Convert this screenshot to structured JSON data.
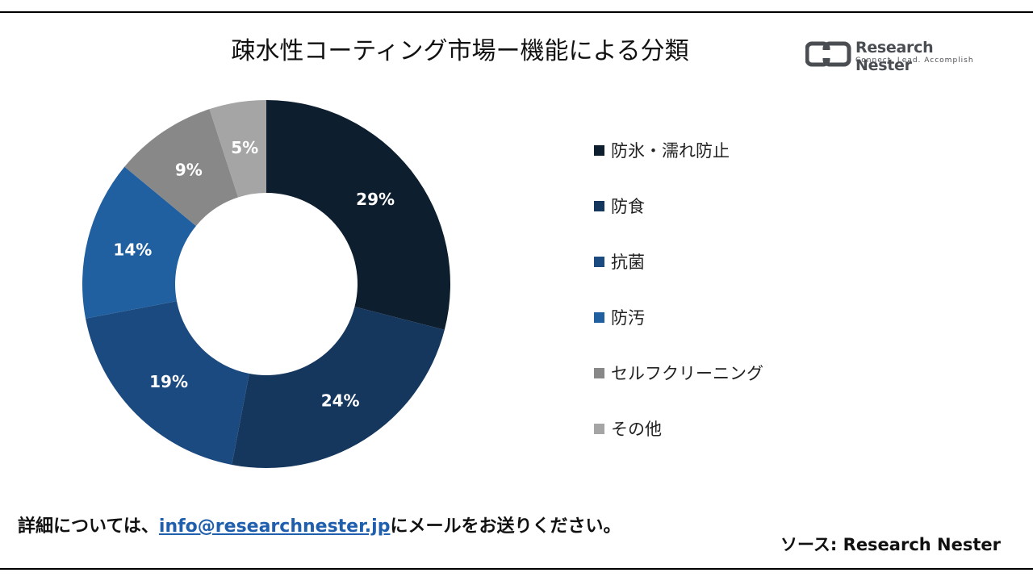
{
  "header": {
    "title": "疎水性コーティング市場ー機能による分類"
  },
  "logo": {
    "name": "Research Nester",
    "tagline": "Connect. Lead. Accomplish",
    "icon": "research-nester-logo-icon",
    "color": "#4a4d52"
  },
  "chart_data": {
    "type": "pie",
    "donut": true,
    "title": "疎水性コーティング市場ー機能による分類",
    "legend_position": "right",
    "categories": [
      "防氷・濡れ防止",
      "防食",
      "抗菌",
      "防汚",
      "セルフクリーニング",
      "その他"
    ],
    "values": [
      29,
      24,
      19,
      14,
      9,
      5
    ],
    "value_labels": [
      "29%",
      "24%",
      "19%",
      "14%",
      "9%",
      "5%"
    ],
    "colors": [
      "#0d1e2f",
      "#15375e",
      "#1b4a80",
      "#2160a0",
      "#888888",
      "#a5a5a5"
    ]
  },
  "footer": {
    "note_prefix": "詳細については、",
    "email": "info@researchnester.jp",
    "note_suffix": "にメールをお送りください。",
    "source": "ソース: Research Nester"
  }
}
